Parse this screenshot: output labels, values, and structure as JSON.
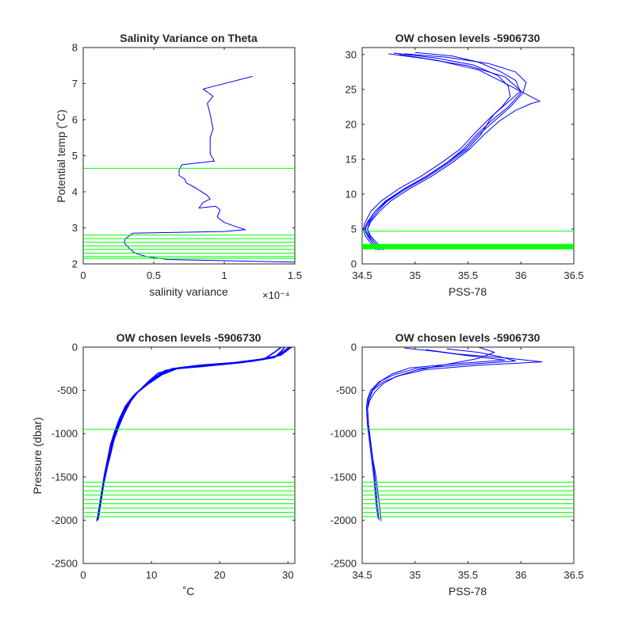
{
  "chart_data": [
    {
      "type": "line",
      "title": "Salinity Variance on Theta",
      "xlabel": "salinity variance",
      "ylabel": "Potential temp (˚C)",
      "x_exponent": "×10⁻⁴",
      "xlim": [
        0,
        1.5
      ],
      "ylim": [
        2,
        8
      ],
      "xticks": [
        "0",
        "0.5",
        "1",
        "1.5"
      ],
      "yticks": [
        "2",
        "3",
        "4",
        "5",
        "6",
        "7",
        "8"
      ],
      "grid": false,
      "series_color": "#0000ff",
      "level_color": "#00ff00",
      "series": [
        {
          "x": [
            1.2,
            0.85,
            0.92,
            0.88,
            0.9,
            0.92,
            0.9,
            0.9,
            0.93,
            0.7,
            0.68,
            0.68,
            0.72,
            0.73,
            0.8,
            0.88,
            0.9,
            0.85,
            0.82,
            0.94,
            0.97,
            0.95,
            1.0,
            1.07,
            1.15,
            1.0,
            0.35,
            0.3,
            0.29,
            0.31,
            0.33,
            0.35,
            0.38,
            0.45,
            0.6,
            1.5
          ],
          "y": [
            7.2,
            6.85,
            6.65,
            6.45,
            6.15,
            5.75,
            5.5,
            5.05,
            4.85,
            4.75,
            4.6,
            4.45,
            4.35,
            4.25,
            4.1,
            3.9,
            3.8,
            3.7,
            3.55,
            3.6,
            3.5,
            3.3,
            3.15,
            3.05,
            2.95,
            2.9,
            2.85,
            2.7,
            2.6,
            2.5,
            2.42,
            2.35,
            2.28,
            2.2,
            2.12,
            2.05
          ]
        }
      ],
      "levels": [
        4.65,
        2.8,
        2.7,
        2.6,
        2.5,
        2.4,
        2.3,
        2.2,
        2.15
      ]
    },
    {
      "type": "line",
      "title": "OW chosen levels -5906730",
      "xlabel": "PSS-78",
      "ylabel": "",
      "xlim": [
        34.5,
        36.5
      ],
      "ylim": [
        0,
        31
      ],
      "xticks": [
        "34.5",
        "35",
        "35.5",
        "36",
        "36.5"
      ],
      "yticks": [
        "0",
        "5",
        "10",
        "15",
        "20",
        "25",
        "30"
      ],
      "grid": false,
      "series_color": "#0000ff",
      "level_color": "#00ff00",
      "series": [
        {
          "x": [
            34.65,
            34.6,
            34.55,
            34.52,
            34.55,
            34.62,
            34.72,
            34.9,
            35.1,
            35.3,
            35.48,
            35.6,
            35.75,
            35.9,
            36.02,
            36.05,
            35.95,
            35.7,
            35.3,
            34.9
          ],
          "y": [
            2.0,
            3.0,
            4.0,
            5.0,
            6.0,
            7.5,
            9.0,
            10.8,
            12.5,
            14.5,
            16.5,
            18.5,
            20.5,
            22.5,
            24.5,
            26.0,
            27.5,
            28.7,
            29.6,
            30.1
          ]
        },
        {
          "x": [
            34.68,
            34.62,
            34.57,
            34.55,
            34.58,
            34.66,
            34.77,
            34.95,
            35.15,
            35.35,
            35.52,
            35.65,
            35.8,
            35.95,
            36.1,
            36.18,
            35.9,
            35.6,
            35.2,
            34.85
          ],
          "y": [
            2.0,
            3.0,
            4.0,
            5.0,
            6.0,
            7.5,
            9.0,
            10.8,
            12.5,
            14.5,
            16.5,
            18.5,
            20.5,
            22.0,
            23.0,
            23.3,
            25.5,
            27.8,
            29.2,
            30.0
          ]
        },
        {
          "x": [
            34.63,
            34.58,
            34.53,
            34.51,
            34.53,
            34.58,
            34.68,
            34.85,
            35.05,
            35.25,
            35.43,
            35.55,
            35.68,
            35.82,
            35.9,
            35.88,
            35.78,
            35.55,
            35.2,
            34.8
          ],
          "y": [
            2.0,
            3.0,
            4.0,
            5.0,
            6.0,
            7.5,
            9.0,
            10.8,
            12.5,
            14.5,
            16.5,
            18.5,
            20.5,
            22.5,
            24.0,
            25.5,
            27.0,
            28.5,
            29.5,
            30.2
          ]
        },
        {
          "x": [
            34.7,
            34.64,
            34.58,
            34.55,
            34.57,
            34.64,
            34.74,
            34.92,
            35.12,
            35.32,
            35.5,
            35.62,
            35.7,
            35.75,
            35.85,
            36.0,
            35.85,
            35.5,
            35.1,
            34.75
          ],
          "y": [
            2.0,
            3.0,
            4.0,
            5.0,
            6.0,
            7.5,
            9.0,
            10.8,
            12.5,
            14.5,
            16.5,
            18.5,
            20.5,
            21.5,
            22.8,
            24.8,
            26.8,
            28.4,
            29.4,
            30.1
          ]
        },
        {
          "x": [
            34.66,
            34.6,
            34.56,
            34.53,
            34.56,
            34.62,
            34.73,
            34.9,
            35.1,
            35.3,
            35.46,
            35.58,
            35.72,
            35.88,
            36.0,
            35.95,
            35.8,
            35.6,
            35.35,
            35.0
          ],
          "y": [
            2.0,
            3.0,
            4.0,
            5.0,
            6.0,
            7.5,
            9.0,
            10.8,
            12.5,
            14.5,
            16.5,
            18.5,
            20.5,
            22.5,
            24.5,
            26.3,
            27.6,
            28.9,
            29.8,
            30.3
          ]
        }
      ],
      "levels": [
        4.7,
        2.8,
        2.7,
        2.6,
        2.5,
        2.4,
        2.3,
        2.2,
        2.15
      ]
    },
    {
      "type": "line",
      "title": "OW chosen levels -5906730",
      "xlabel": "˚C",
      "ylabel": "Pressure (dbar)",
      "xlim": [
        0,
        31
      ],
      "ylim": [
        -2500,
        0
      ],
      "xticks": [
        "0",
        "10",
        "20",
        "30"
      ],
      "yticks": [
        "0",
        "-500",
        "-1000",
        "-1500",
        "-2000",
        "-2500"
      ],
      "grid": false,
      "series_color": "#0000ff",
      "level_color": "#00ff00",
      "series": [
        {
          "x": [
            29.5,
            29.0,
            28.0,
            25.0,
            20.0,
            15.0,
            12.0,
            10.5,
            9.0,
            7.5,
            6.5,
            5.5,
            4.8,
            4.2,
            3.6,
            3.2,
            2.9,
            2.6,
            2.3,
            2.1
          ],
          "y": [
            0,
            -50,
            -120,
            -160,
            -200,
            -230,
            -270,
            -350,
            -450,
            -550,
            -650,
            -800,
            -950,
            -1100,
            -1300,
            -1450,
            -1600,
            -1750,
            -1900,
            -2000
          ]
        },
        {
          "x": [
            30.2,
            29.5,
            28.5,
            26.0,
            22.0,
            17.0,
            13.0,
            11.0,
            9.3,
            7.8,
            6.8,
            5.8,
            5.0,
            4.4,
            3.8,
            3.4,
            3.0,
            2.7,
            2.4,
            2.2
          ],
          "y": [
            0,
            -40,
            -100,
            -140,
            -180,
            -210,
            -250,
            -330,
            -430,
            -530,
            -630,
            -780,
            -930,
            -1080,
            -1280,
            -1430,
            -1580,
            -1730,
            -1880,
            -1990
          ]
        },
        {
          "x": [
            29.0,
            28.0,
            26.5,
            23.0,
            18.0,
            13.5,
            11.0,
            9.8,
            8.5,
            7.2,
            6.2,
            5.3,
            4.6,
            4.0,
            3.5,
            3.1,
            2.8,
            2.5,
            2.2,
            2.0
          ],
          "y": [
            0,
            -60,
            -140,
            -180,
            -220,
            -250,
            -300,
            -380,
            -480,
            -580,
            -680,
            -830,
            -980,
            -1130,
            -1330,
            -1480,
            -1630,
            -1780,
            -1930,
            -2010
          ]
        },
        {
          "x": [
            30.5,
            30.0,
            29.0,
            27.0,
            24.0,
            19.0,
            14.0,
            11.5,
            9.6,
            8.0,
            7.0,
            6.0,
            5.2,
            4.5,
            3.9,
            3.4,
            3.0,
            2.7,
            2.4,
            2.1
          ],
          "y": [
            0,
            -30,
            -90,
            -130,
            -170,
            -200,
            -240,
            -320,
            -420,
            -520,
            -620,
            -770,
            -920,
            -1070,
            -1270,
            -1420,
            -1570,
            -1720,
            -1870,
            -2000
          ]
        }
      ],
      "levels": [
        -950,
        -1560,
        -1610,
        -1660,
        -1710,
        -1760,
        -1810,
        -1860,
        -1910,
        -1960
      ]
    },
    {
      "type": "line",
      "title": "OW chosen levels -5906730",
      "xlabel": "PSS-78",
      "ylabel": "",
      "xlim": [
        34.5,
        36.5
      ],
      "ylim": [
        -2500,
        0
      ],
      "xticks": [
        "34.5",
        "35",
        "35.5",
        "36",
        "36.5"
      ],
      "yticks": [
        "0",
        "-500",
        "-1000",
        "-1500",
        "-2000",
        "-2500"
      ],
      "grid": false,
      "series_color": "#0000ff",
      "level_color": "#00ff00",
      "series": [
        {
          "x": [
            35.1,
            35.4,
            35.9,
            36.2,
            35.6,
            35.1,
            34.85,
            34.7,
            34.6,
            34.57,
            34.55,
            34.56,
            34.58,
            34.6,
            34.62,
            34.64,
            34.66
          ],
          "y": [
            -30,
            -80,
            -130,
            -170,
            -210,
            -260,
            -330,
            -400,
            -500,
            -600,
            -700,
            -900,
            -1100,
            -1300,
            -1500,
            -1800,
            -2000
          ]
        },
        {
          "x": [
            35.3,
            35.6,
            35.8,
            35.95,
            35.5,
            35.0,
            34.8,
            34.66,
            34.58,
            34.55,
            34.54,
            34.55,
            34.57,
            34.59,
            34.61,
            34.63,
            34.65
          ],
          "y": [
            -20,
            -60,
            -110,
            -160,
            -200,
            -250,
            -320,
            -400,
            -500,
            -600,
            -700,
            -900,
            -1100,
            -1300,
            -1500,
            -1800,
            -1980
          ]
        },
        {
          "x": [
            34.9,
            35.2,
            35.5,
            35.85,
            35.4,
            34.95,
            34.78,
            34.68,
            34.6,
            34.56,
            34.55,
            34.56,
            34.58,
            34.6,
            34.63,
            34.66,
            34.68
          ],
          "y": [
            -10,
            -50,
            -100,
            -150,
            -190,
            -240,
            -310,
            -390,
            -490,
            -590,
            -690,
            -890,
            -1090,
            -1290,
            -1490,
            -1790,
            -2010
          ]
        },
        {
          "x": [
            35.6,
            35.75,
            35.6,
            35.3,
            35.0,
            34.82,
            34.7,
            34.62,
            34.57,
            34.55,
            34.56,
            34.58,
            34.6,
            34.62,
            34.64
          ],
          "y": [
            0,
            -60,
            -130,
            -200,
            -270,
            -340,
            -420,
            -520,
            -620,
            -720,
            -920,
            -1120,
            -1320,
            -1520,
            -1750
          ]
        }
      ],
      "levels": [
        -950,
        -1560,
        -1610,
        -1660,
        -1710,
        -1760,
        -1810,
        -1860,
        -1910,
        -1960
      ]
    }
  ]
}
